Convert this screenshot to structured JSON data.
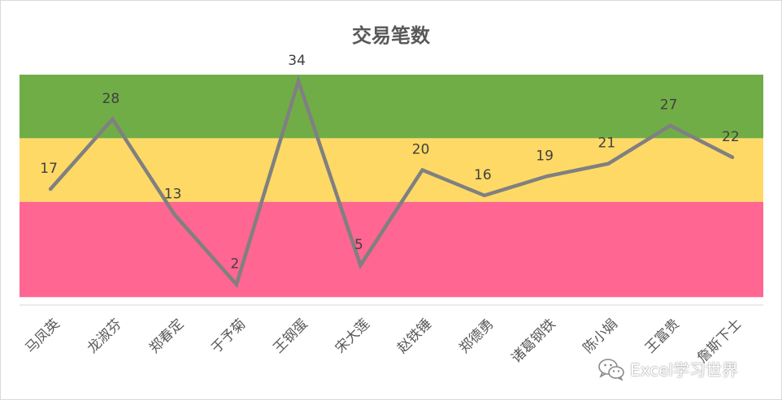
{
  "chart_data": {
    "type": "line",
    "title": "交易笔数",
    "categories": [
      "马凤英",
      "龙淑芬",
      "郑春定",
      "于予菊",
      "王钢蛋",
      "宋大莲",
      "赵铁锤",
      "郑德勇",
      "诸葛钢铁",
      "陈小娟",
      "王富贵",
      "詹斯下士"
    ],
    "series": [
      {
        "values": [
          17,
          28,
          13,
          2,
          34,
          5,
          20,
          16,
          19,
          21,
          27,
          22
        ]
      }
    ],
    "bands": [
      {
        "from": 0,
        "to": 15,
        "color": "#ff6691"
      },
      {
        "from": 15,
        "to": 25,
        "color": "#ffd966"
      },
      {
        "from": 25,
        "to": 35,
        "color": "#70ad47"
      }
    ],
    "ylim": [
      -1.25,
      35
    ],
    "grid": false,
    "line_color": "#808080",
    "label_color": "#404040",
    "axis_label_color": "#595959"
  },
  "watermark": {
    "text": "Excel学习世界",
    "icon": "wechat-icon"
  }
}
